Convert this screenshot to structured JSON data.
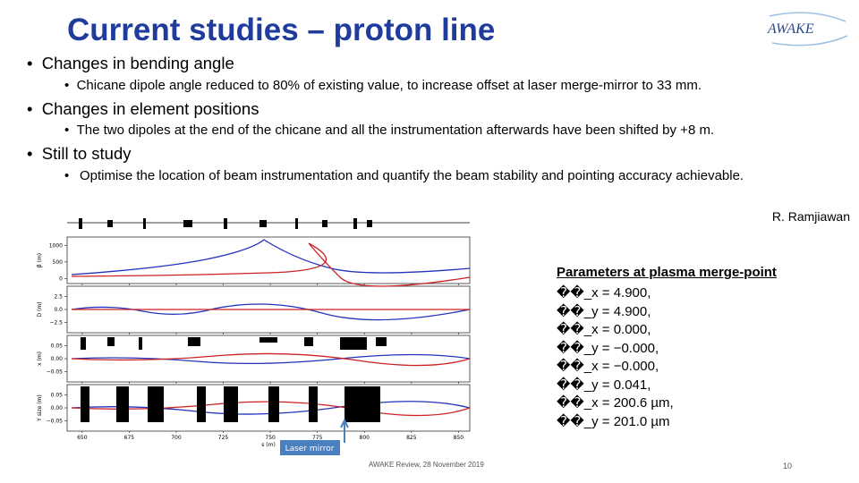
{
  "header": {
    "title": "Current studies – proton line",
    "logo": "AWAKE"
  },
  "bullets": [
    {
      "text": "Changes in bending angle",
      "sub": "Chicane dipole angle reduced to 80% of existing value, to increase offset at laser merge-mirror to 33 mm."
    },
    {
      "text": "Changes in element positions",
      "sub": "The two dipoles at the end of the chicane and all the instrumentation afterwards have been shifted by +8 m."
    },
    {
      "text": "Still to study",
      "sub": "Optimise the location of beam instrumentation and quantify the beam stability and pointing accuracy achievable."
    }
  ],
  "author": "R. Ramjiawan",
  "figure": {
    "x_label": "s (m)",
    "xlim": [
      642,
      856
    ],
    "xticks": [
      650,
      675,
      700,
      725,
      750,
      775,
      800,
      825,
      850
    ],
    "panels": [
      {
        "y_label": "β (m)",
        "ylim": [
          -150,
          1250
        ],
        "yticks": [
          0,
          500,
          1000
        ]
      },
      {
        "y_label": "D (m)",
        "ylim": [
          -4.5,
          4.5
        ],
        "yticks": [
          {
            "value": 2.5,
            "label": "2.5"
          },
          {
            "value": 0,
            "label": "0.0"
          },
          {
            "value": -2.5,
            "label": "−2.5"
          }
        ]
      },
      {
        "y_label": "x (m)",
        "ylim": [
          -0.09,
          0.09
        ],
        "yticks": [
          {
            "value": 0.05,
            "label": "0.05"
          },
          {
            "value": 0,
            "label": "0.00"
          },
          {
            "value": -0.05,
            "label": "−0.05"
          }
        ]
      },
      {
        "y_label": "Y size (m)",
        "ylim": [
          -0.09,
          0.09
        ],
        "yticks": [
          {
            "value": 0.05,
            "label": "0.05"
          },
          {
            "value": 0,
            "label": "0.00"
          },
          {
            "value": -0.05,
            "label": "−0.05"
          }
        ]
      }
    ],
    "annotation": "Laser mirror"
  },
  "parameters": {
    "title": "Parameters at plasma merge-point",
    "lines": [
      "��_x = 4.900,",
      "��_y = 4.900,",
      "��_x = 0.000,",
      "��_y = −0.000,",
      "��_x = −0.000,",
      "��_y = 0.041,",
      "��_x = 200.6 µm,",
      "��_y = 201.0 µm"
    ]
  },
  "footer": {
    "text": "AWAKE Review, 28 November 2019",
    "page": "10"
  }
}
